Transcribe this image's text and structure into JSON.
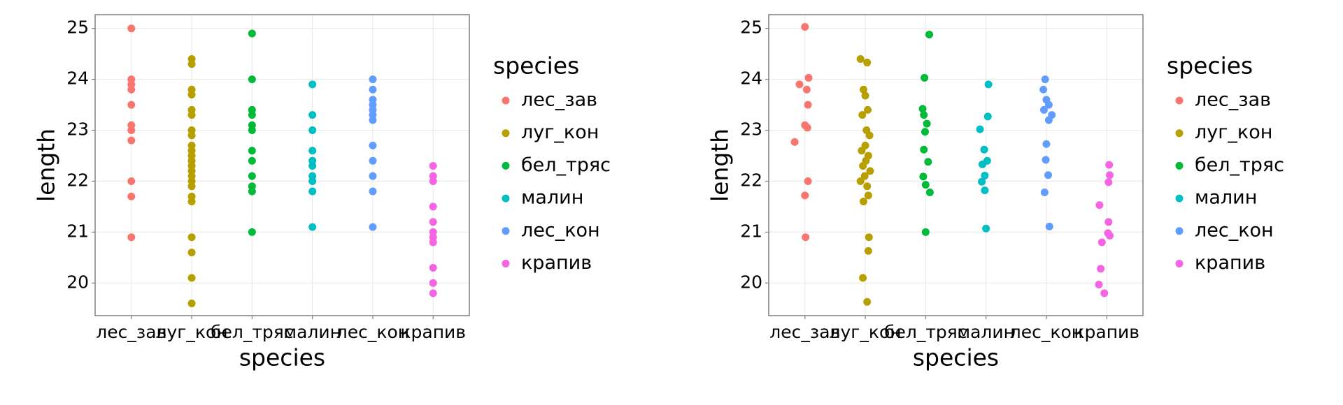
{
  "chart_data": [
    {
      "type": "scatter",
      "x_label": "species",
      "y_label": "length",
      "legend_title": "species",
      "xlim": [
        0.4,
        6.6
      ],
      "ylim": [
        19.36,
        25.27
      ],
      "xticks": [
        {
          "value": 1,
          "label": "лес_зав"
        },
        {
          "value": 2,
          "label": "луг_кон"
        },
        {
          "value": 3,
          "label": "бел_тряс"
        },
        {
          "value": 4,
          "label": "малин"
        },
        {
          "value": 5,
          "label": "лес_кон"
        },
        {
          "value": 6,
          "label": "крапив"
        }
      ],
      "yticks": [
        20,
        21,
        22,
        23,
        24,
        25
      ],
      "series": [
        {
          "name": "лес_зав",
          "color": "#F8766D",
          "x": [
            1,
            1,
            1,
            1,
            1,
            1,
            1,
            1,
            1,
            1,
            1
          ],
          "values": [
            25,
            24,
            23.9,
            23.8,
            23.5,
            23.1,
            23.0,
            22.8,
            22.0,
            21.7,
            20.9
          ]
        },
        {
          "name": "луг_кон",
          "color": "#B79F00",
          "x": [
            2,
            2,
            2,
            2,
            2,
            2,
            2,
            2,
            2,
            2,
            2,
            2,
            2,
            2,
            2,
            2,
            2,
            2,
            2,
            2,
            2,
            2,
            2
          ],
          "values": [
            24.4,
            24.3,
            23.8,
            23.7,
            23.4,
            23.3,
            23.0,
            22.9,
            22.7,
            22.6,
            22.5,
            22.4,
            22.3,
            22.2,
            22.1,
            22.0,
            21.9,
            21.7,
            21.6,
            20.9,
            20.6,
            20.1,
            19.6
          ]
        },
        {
          "name": "бел_тряс",
          "color": "#00BA38",
          "x": [
            3,
            3,
            3,
            3,
            3,
            3,
            3,
            3,
            3,
            3,
            3,
            3
          ],
          "values": [
            24.9,
            24.0,
            23.4,
            23.3,
            23.1,
            23.0,
            22.6,
            22.4,
            22.1,
            21.9,
            21.8,
            21.0
          ]
        },
        {
          "name": "малин",
          "color": "#00BFC4",
          "x": [
            4,
            4,
            4,
            4,
            4,
            4,
            4,
            4,
            4,
            4
          ],
          "values": [
            23.9,
            23.3,
            23.0,
            22.6,
            22.4,
            22.3,
            22.1,
            22.0,
            21.8,
            21.1
          ]
        },
        {
          "name": "лес_кон",
          "color": "#619CFF",
          "x": [
            5,
            5,
            5,
            5,
            5,
            5,
            5,
            5,
            5,
            5,
            5,
            5
          ],
          "values": [
            24.0,
            23.8,
            23.6,
            23.5,
            23.4,
            23.3,
            23.2,
            22.7,
            22.4,
            22.1,
            21.8,
            21.1
          ]
        },
        {
          "name": "крапив",
          "color": "#F564E3",
          "x": [
            6,
            6,
            6,
            6,
            6,
            6,
            6,
            6,
            6,
            6,
            6
          ],
          "values": [
            22.3,
            22.1,
            22.0,
            21.5,
            21.2,
            21.0,
            20.9,
            20.8,
            20.3,
            20.0,
            19.8
          ]
        }
      ]
    },
    {
      "type": "scatter",
      "x_label": "species",
      "y_label": "length",
      "legend_title": "species",
      "xlim": [
        0.4,
        6.6
      ],
      "ylim": [
        19.36,
        25.27
      ],
      "xticks": [
        {
          "value": 1,
          "label": "лес_зав"
        },
        {
          "value": 2,
          "label": "луг_кон"
        },
        {
          "value": 3,
          "label": "бел_тряс"
        },
        {
          "value": 4,
          "label": "малин"
        },
        {
          "value": 5,
          "label": "лес_кон"
        },
        {
          "value": 6,
          "label": "крапив"
        }
      ],
      "yticks": [
        20,
        21,
        22,
        23,
        24,
        25
      ],
      "series": [
        {
          "name": "лес_зав",
          "color": "#F8766D",
          "x": [
            1.0,
            1.06,
            0.91,
            1.03,
            1.05,
            1.0,
            1.04,
            0.83,
            1.05,
            1.0,
            1.01
          ],
          "values": [
            25.03,
            24.03,
            23.9,
            23.8,
            23.5,
            23.1,
            23.05,
            22.77,
            22.0,
            21.72,
            20.9
          ]
        },
        {
          "name": "луг_кон",
          "color": "#B79F00",
          "x": [
            1.92,
            2.03,
            1.97,
            2.0,
            2.04,
            1.95,
            2.02,
            2.07,
            2.0,
            1.94,
            2.05,
            2.01,
            1.96,
            2.08,
            1.99,
            1.92,
            2.03,
            2.05,
            1.97,
            2.06,
            2.05,
            1.96,
            2.03
          ],
          "values": [
            24.4,
            24.33,
            23.8,
            23.68,
            23.4,
            23.3,
            23.0,
            22.9,
            22.7,
            22.6,
            22.5,
            22.4,
            22.3,
            22.2,
            22.1,
            22.0,
            21.9,
            21.72,
            21.6,
            20.9,
            20.63,
            20.1,
            19.63
          ]
        },
        {
          "name": "бел_тряс",
          "color": "#00BA38",
          "x": [
            3.06,
            2.98,
            2.95,
            2.97,
            3.02,
            2.99,
            2.97,
            3.04,
            2.96,
            3.0,
            3.07,
            3.0
          ],
          "values": [
            24.88,
            24.03,
            23.42,
            23.3,
            23.13,
            22.97,
            22.62,
            22.38,
            22.09,
            21.93,
            21.78,
            21.0
          ]
        },
        {
          "name": "малин",
          "color": "#00BFC4",
          "x": [
            4.04,
            4.03,
            3.9,
            3.97,
            4.02,
            3.94,
            3.98,
            3.93,
            3.98,
            4.0
          ],
          "values": [
            23.9,
            23.27,
            23.02,
            22.62,
            22.4,
            22.33,
            22.11,
            21.99,
            21.82,
            21.07
          ]
        },
        {
          "name": "лес_кон",
          "color": "#619CFF",
          "x": [
            4.98,
            4.95,
            5.0,
            5.04,
            4.96,
            5.09,
            5.04,
            5.0,
            4.99,
            5.03,
            4.97,
            5.05
          ],
          "values": [
            24.0,
            23.8,
            23.6,
            23.5,
            23.4,
            23.3,
            23.2,
            22.73,
            22.42,
            22.12,
            21.78,
            21.11
          ]
        },
        {
          "name": "крапив",
          "color": "#F564E3",
          "x": [
            6.04,
            6.05,
            6.03,
            5.88,
            6.03,
            6.02,
            6.05,
            5.92,
            5.9,
            5.87,
            5.96
          ],
          "values": [
            22.32,
            22.12,
            21.98,
            21.53,
            21.2,
            20.98,
            20.93,
            20.8,
            20.28,
            19.97,
            19.8
          ]
        }
      ]
    }
  ]
}
